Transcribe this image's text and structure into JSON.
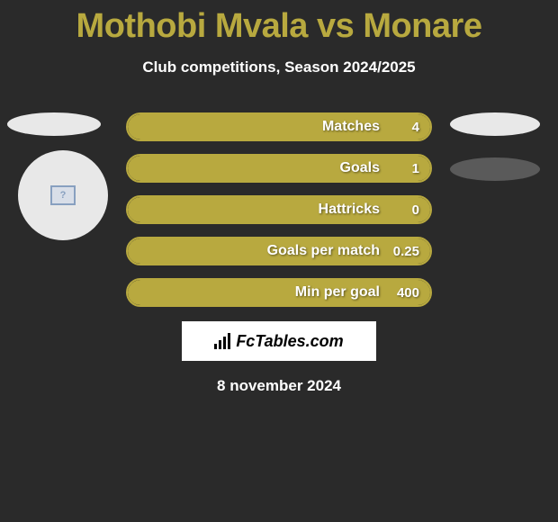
{
  "title": "Mothobi Mvala vs Monare",
  "subtitle": "Club competitions, Season 2024/2025",
  "date": "8 november 2024",
  "logo": {
    "text": "FcTables.com"
  },
  "colors": {
    "background": "#2a2a2a",
    "accent": "#b8a93f",
    "text": "#ffffff",
    "oval_light": "#e8e8e8",
    "oval_dark": "#5a5a5a"
  },
  "stats": [
    {
      "label": "Matches",
      "value": "4",
      "fill_pct": 100
    },
    {
      "label": "Goals",
      "value": "1",
      "fill_pct": 100
    },
    {
      "label": "Hattricks",
      "value": "0",
      "fill_pct": 100
    },
    {
      "label": "Goals per match",
      "value": "0.25",
      "fill_pct": 100
    },
    {
      "label": "Min per goal",
      "value": "400",
      "fill_pct": 100
    }
  ]
}
